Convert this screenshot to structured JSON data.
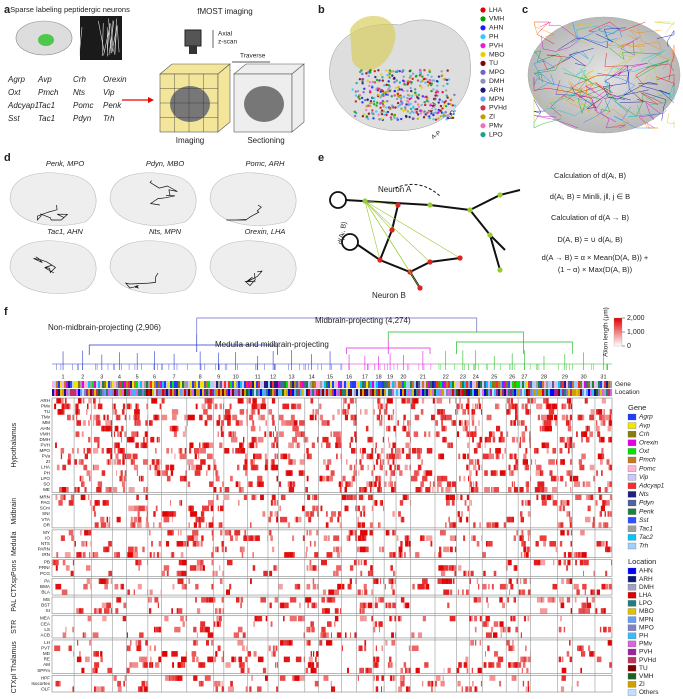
{
  "panel_a": {
    "label": "a",
    "title": "Sparse labeling peptidergic neurons",
    "imaging_title": "fMOST imaging",
    "axial": "Axial",
    "zscan": "z-scan",
    "traverse": "Traverse",
    "imaging": "Imaging",
    "sectioning": "Sectioning",
    "genes": [
      [
        "Agrp",
        "Avp",
        "Crh",
        "Orexin"
      ],
      [
        "Oxt",
        "Pmch",
        "Nts",
        "Vip"
      ],
      [
        "Adcyap1",
        "Tac1",
        "Pomc",
        "Penk"
      ],
      [
        "Sst",
        "Tac1",
        "Pdyn",
        "Trh"
      ]
    ]
  },
  "panel_b": {
    "label": "b",
    "axes": [
      "L-M",
      "V-D",
      "A-P"
    ],
    "regions": [
      {
        "name": "LHA",
        "color": "#e00000"
      },
      {
        "name": "VMH",
        "color": "#00a000"
      },
      {
        "name": "AHN",
        "color": "#1a1aff"
      },
      {
        "name": "PH",
        "color": "#30c8ff"
      },
      {
        "name": "PVH",
        "color": "#e020e0"
      },
      {
        "name": "MBO",
        "color": "#e8d000"
      },
      {
        "name": "TU",
        "color": "#8b0000"
      },
      {
        "name": "MPO",
        "color": "#7060d0"
      },
      {
        "name": "DMH",
        "color": "#9090b8"
      },
      {
        "name": "ARH",
        "color": "#101a80"
      },
      {
        "name": "MPN",
        "color": "#60a8ff"
      },
      {
        "name": "PVHd",
        "color": "#d03050"
      },
      {
        "name": "ZI",
        "color": "#c0a000"
      },
      {
        "name": "PMv",
        "color": "#f070c0"
      },
      {
        "name": "LPO",
        "color": "#20a090"
      }
    ]
  },
  "panel_c": {
    "label": "c"
  },
  "panel_d": {
    "label": "d",
    "views": [
      "Penk, MPO",
      "Pdyn, MBO",
      "Pomc, ARH",
      "Tac1, AHN",
      "Nts, MPN",
      "Orexin, LHA"
    ]
  },
  "panel_e": {
    "label": "e",
    "neuron_a": "Neuron A",
    "neuron_b": "Neuron B",
    "edge": "d(Aᵢ, B)",
    "calc1": "Calculation of d(Aᵢ, B)",
    "formula1": "d(Aᵢ, B) = Min‖i, j‖, j ∈ B",
    "calc2": "Calculation of d(A → B)",
    "formula2": "D(A, B) = ∪ d(Aᵢ, B)",
    "formula3": "d(A → B) = α × Mean(D(A, B)) +",
    "formula4": "(1 − α) × Max(D(A, B))"
  },
  "panel_f": {
    "label": "f",
    "non_midbrain": "Non-midbrain-projecting (2,906)",
    "midbrain": "Midbrain-projecting (4,274)",
    "medulla": "Medulla and midbrain-projecting",
    "colorbar_title": "Axon length (µm)",
    "colorbar_ticks": [
      {
        "value": 2000,
        "label": "2,000"
      },
      {
        "value": 1000,
        "label": "1,000"
      },
      0
    ],
    "colorbar_lim": [
      0,
      2000
    ],
    "clusters": [
      1,
      2,
      3,
      4,
      5,
      6,
      7,
      8,
      9,
      10,
      11,
      12,
      13,
      14,
      15,
      16,
      17,
      18,
      19,
      20,
      21,
      22,
      23,
      24,
      25,
      26,
      27,
      28,
      29,
      30,
      31
    ],
    "gene_bar": "Gene",
    "location_bar": "Location",
    "groups": [
      {
        "name": "Hypothalamus",
        "color": "#2a3acc",
        "rows": [
          "ARH",
          "PMv",
          "TU",
          "TMv",
          "MM",
          "AHN",
          "VMH",
          "DMH",
          "PVH",
          "MPO",
          "PVa",
          "ZI",
          "LHA",
          "PH",
          "LPO",
          "SO",
          "ME"
        ]
      },
      {
        "name": "Midbrain",
        "color": "#22aa22",
        "rows": [
          "MRN",
          "PAG",
          "SCm",
          "SNr",
          "VTA",
          "DR"
        ]
      },
      {
        "name": "Medulla",
        "color": "#dd22dd",
        "rows": [
          "MY",
          "IO",
          "NTS",
          "PARN",
          "IRN"
        ]
      },
      {
        "name": "Pons",
        "color": "#222",
        "rows": [
          "PB",
          "PRNr",
          "PCG"
        ]
      },
      {
        "name": "CTXsp",
        "color": "#222",
        "rows": [
          "PA",
          "BMA",
          "BLA"
        ]
      },
      {
        "name": "PAL",
        "color": "#222",
        "rows": [
          "MS",
          "BST",
          "SI"
        ]
      },
      {
        "name": "STR",
        "color": "#222",
        "rows": [
          "MEA",
          "CEA",
          "LS",
          "ACB"
        ]
      },
      {
        "name": "Thalamus",
        "color": "#222",
        "rows": [
          "LH",
          "PVT",
          "MD",
          "RE",
          "AM",
          "SPFm"
        ]
      },
      {
        "name": "CTXpl",
        "color": "#222",
        "rows": [
          "HPF",
          "Isocortex",
          "OLF"
        ]
      }
    ],
    "gene_legend": {
      "title": "Gene",
      "items": [
        {
          "name": "Agrp",
          "color": "#1f3cff"
        },
        {
          "name": "Avp",
          "color": "#f2e600"
        },
        {
          "name": "Crh",
          "color": "#8a7a10"
        },
        {
          "name": "Orexin",
          "color": "#e600e6"
        },
        {
          "name": "Oxt",
          "color": "#00e600"
        },
        {
          "name": "Pmch",
          "color": "#c87820"
        },
        {
          "name": "Pomc",
          "color": "#ffb3d9"
        },
        {
          "name": "Vip",
          "color": "#c8c8ff"
        },
        {
          "name": "Adcyap1",
          "color": "#ff2a2a"
        },
        {
          "name": "Nts",
          "color": "#202080"
        },
        {
          "name": "Pdyn",
          "color": "#5060a0"
        },
        {
          "name": "Penk",
          "color": "#208040"
        },
        {
          "name": "Sst",
          "color": "#3050ff"
        },
        {
          "name": "Tac1",
          "color": "#a0a0a0"
        },
        {
          "name": "Tac2",
          "color": "#00c8ff"
        },
        {
          "name": "Trh",
          "color": "#a0d0ff"
        }
      ]
    },
    "location_legend": {
      "title": "Location",
      "items": [
        {
          "name": "AHN",
          "color": "#0000ff"
        },
        {
          "name": "ARH",
          "color": "#0a1a80"
        },
        {
          "name": "DMH",
          "color": "#a0a0c8"
        },
        {
          "name": "LHA",
          "color": "#e00000"
        },
        {
          "name": "LPO",
          "color": "#208080"
        },
        {
          "name": "MBO",
          "color": "#e0c000"
        },
        {
          "name": "MPN",
          "color": "#60a0ff"
        },
        {
          "name": "MPO",
          "color": "#8080d0"
        },
        {
          "name": "PH",
          "color": "#30c0ff"
        },
        {
          "name": "PMv",
          "color": "#e060e0"
        },
        {
          "name": "PVH",
          "color": "#a020a0"
        },
        {
          "name": "PVHd",
          "color": "#c03060"
        },
        {
          "name": "TU",
          "color": "#800000"
        },
        {
          "name": "VMH",
          "color": "#206020"
        },
        {
          "name": "ZI",
          "color": "#d0a000"
        },
        {
          "name": "Others",
          "color": "#c0e0ff"
        }
      ]
    }
  }
}
